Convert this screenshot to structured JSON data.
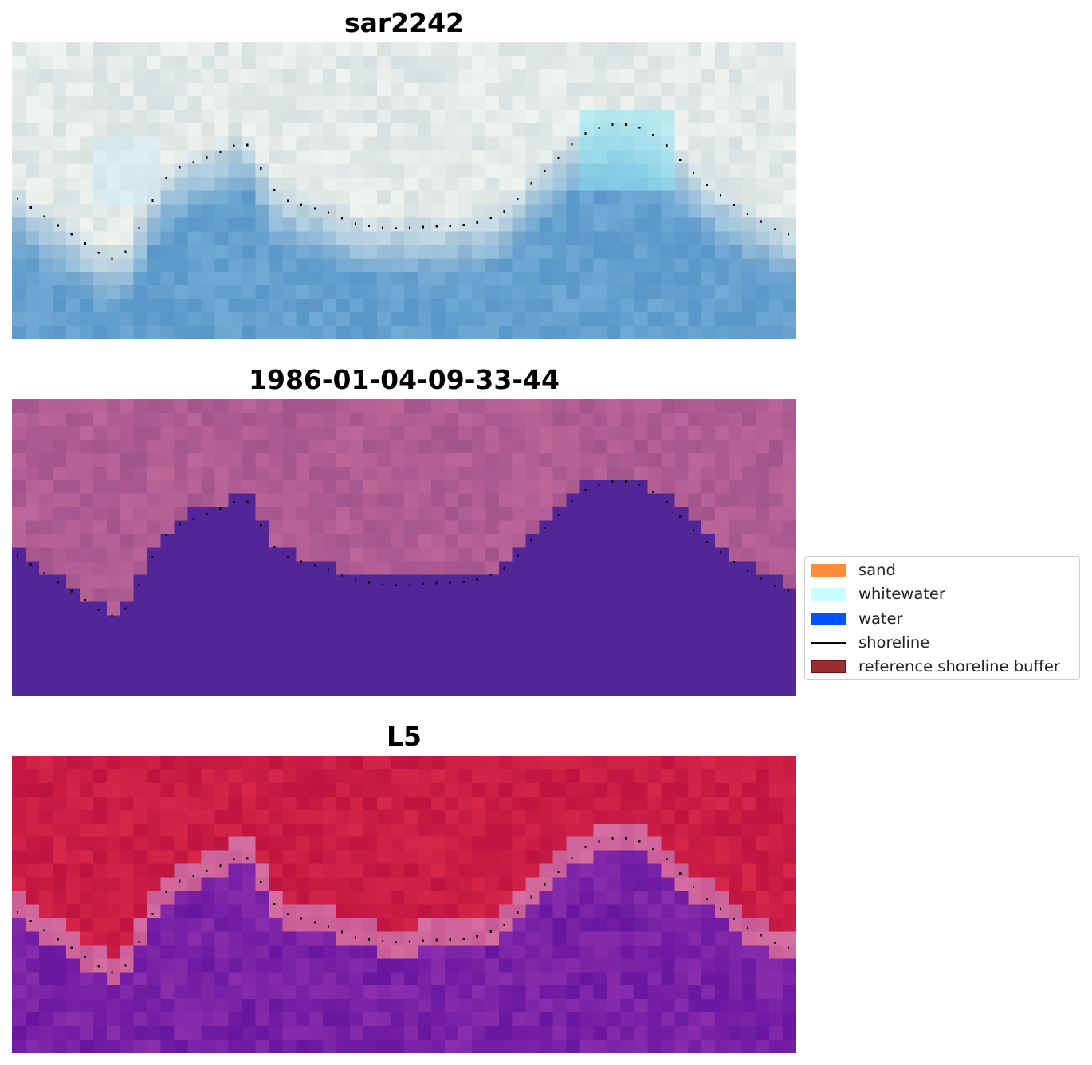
{
  "panels": [
    {
      "title": "sar2242",
      "palette": "sar"
    },
    {
      "title": "1986-01-04-09-33-44",
      "palette": "classified"
    },
    {
      "title": "L5",
      "palette": "index"
    }
  ],
  "legend": {
    "items": [
      {
        "label": "sand",
        "color": "#ff8c3a",
        "kind": "patch"
      },
      {
        "label": "whitewater",
        "color": "#c8ffff",
        "kind": "patch"
      },
      {
        "label": "water",
        "color": "#0055ff",
        "kind": "patch"
      },
      {
        "label": "shoreline",
        "color": "#000000",
        "kind": "line"
      },
      {
        "label": "reference shoreline buffer",
        "color": "#9c2e2e",
        "kind": "patch"
      }
    ]
  }
}
